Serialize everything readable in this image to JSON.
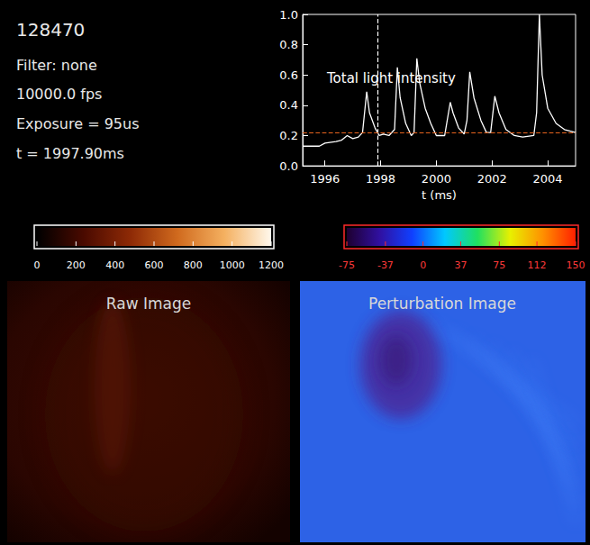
{
  "info": {
    "shot": "128470",
    "filter": "Filter: none",
    "frame_rate": "10000.0 fps",
    "exposure": "Exposure = 95us",
    "time": "t = 1997.90ms"
  },
  "chart_data": {
    "type": "line",
    "title": "Total light intensity",
    "xlabel": "t (ms)",
    "x": [
      1995.2,
      1995.8,
      1996.0,
      1996.4,
      1996.6,
      1996.8,
      1997.0,
      1997.2,
      1997.35,
      1997.5,
      1997.6,
      1997.8,
      1997.95,
      1998.1,
      1998.3,
      1998.5,
      1998.6,
      1998.7,
      1998.9,
      1999.1,
      1999.2,
      1999.3,
      1999.4,
      1999.6,
      1999.8,
      2000.0,
      2000.3,
      2000.5,
      2000.6,
      2000.8,
      2001.0,
      2001.1,
      2001.2,
      2001.35,
      2001.6,
      2001.8,
      2001.95,
      2002.1,
      2002.25,
      2002.5,
      2002.8,
      2003.1,
      2003.5,
      2003.6,
      2003.7,
      2003.8,
      2004.0,
      2004.3,
      2004.6,
      2005.0
    ],
    "values": [
      0.13,
      0.13,
      0.15,
      0.16,
      0.17,
      0.2,
      0.18,
      0.19,
      0.22,
      0.49,
      0.35,
      0.25,
      0.2,
      0.21,
      0.2,
      0.24,
      0.65,
      0.45,
      0.28,
      0.2,
      0.22,
      0.71,
      0.55,
      0.38,
      0.28,
      0.2,
      0.2,
      0.42,
      0.35,
      0.25,
      0.21,
      0.3,
      0.62,
      0.45,
      0.3,
      0.22,
      0.22,
      0.46,
      0.35,
      0.24,
      0.2,
      0.19,
      0.2,
      0.35,
      1.0,
      0.6,
      0.38,
      0.28,
      0.24,
      0.22
    ],
    "color": "#ffffff",
    "xlim": [
      1995.2,
      2005
    ],
    "ylim": [
      0,
      1.0
    ],
    "xticks": [
      1996,
      1998,
      2000,
      2002,
      2004
    ],
    "yticks": [
      {
        "value": 0,
        "label": "0.0"
      },
      0.2,
      0.4,
      0.6,
      0.8,
      {
        "value": 1,
        "label": "1.0"
      }
    ],
    "cursor_x": 1997.9,
    "cursor_color": "#ffffff",
    "threshold_y": 0.22,
    "threshold_color": "#e8641e",
    "grid": false
  },
  "colorbars": [
    {
      "range": [
        0,
        1200
      ],
      "ticks": [
        0,
        200,
        400,
        600,
        800,
        1000,
        1200
      ],
      "colors": [
        "#000000",
        "#4a0a00",
        "#8e2a06",
        "#d06a1e",
        "#f4b060",
        "#fff8ec"
      ]
    },
    {
      "range": [
        -75,
        150
      ],
      "ticks": [
        -75,
        -37,
        0,
        37,
        75,
        112,
        150
      ],
      "colors": [
        "#1e0030",
        "#3010a0",
        "#1040ff",
        "#00c8ff",
        "#20e060",
        "#e8f000",
        "#ff9000",
        "#ff2000"
      ]
    }
  ],
  "images": [
    {
      "title": "Raw Image"
    },
    {
      "title": "Perturbation Image"
    }
  ]
}
